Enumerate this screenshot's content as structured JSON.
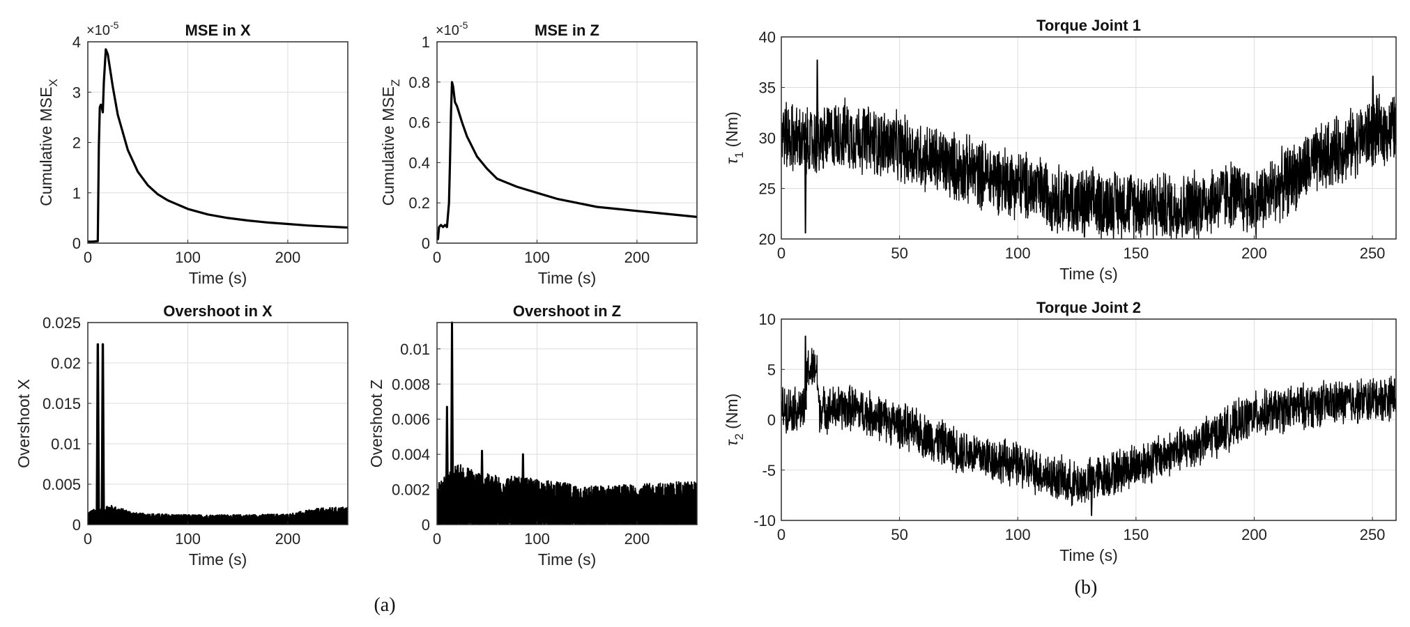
{
  "figure": {
    "panel_labels": [
      "(a)",
      "(b)"
    ]
  },
  "chart_data": [
    {
      "id": "mse-x",
      "type": "line",
      "title": "MSE in X",
      "xlabel": "Time (s)",
      "ylabel_main": "Cumulative MSE",
      "ylabel_sub": "X",
      "exponent_label": "×10",
      "exponent_power": "-5",
      "xlim": [
        0,
        260
      ],
      "ylim": [
        0,
        4
      ],
      "xticks": [
        0,
        100,
        200
      ],
      "yticks": [
        0,
        1,
        2,
        3,
        4
      ],
      "ytick_labels": [
        "0",
        "1",
        "2",
        "3",
        "4"
      ],
      "grid": true,
      "series": [
        {
          "name": "Cumulative MSE X (x1e-5)",
          "x": [
            0,
            5,
            10,
            11,
            12,
            13,
            14,
            15,
            16,
            18,
            20,
            25,
            30,
            40,
            50,
            60,
            70,
            80,
            100,
            120,
            140,
            160,
            180,
            200,
            220,
            240,
            260
          ],
          "y": [
            0.03,
            0.03,
            0.04,
            1.9,
            2.7,
            2.75,
            2.7,
            2.6,
            3.2,
            3.85,
            3.75,
            3.1,
            2.55,
            1.85,
            1.42,
            1.15,
            0.97,
            0.85,
            0.68,
            0.57,
            0.5,
            0.45,
            0.41,
            0.38,
            0.35,
            0.33,
            0.31
          ]
        }
      ]
    },
    {
      "id": "mse-z",
      "type": "line",
      "title": "MSE in Z",
      "xlabel": "Time (s)",
      "ylabel_main": "Cumulative MSE",
      "ylabel_sub": "Z",
      "exponent_label": "×10",
      "exponent_power": "-5",
      "xlim": [
        0,
        260
      ],
      "ylim": [
        0,
        1
      ],
      "xticks": [
        0,
        100,
        200
      ],
      "yticks": [
        0,
        0.2,
        0.4,
        0.6,
        0.8,
        1
      ],
      "ytick_labels": [
        "0",
        "0.2",
        "0.4",
        "0.6",
        "0.8",
        "1"
      ],
      "grid": true,
      "series": [
        {
          "name": "Cumulative MSE Z (x1e-5)",
          "x": [
            0,
            1,
            2,
            4,
            6,
            8,
            10,
            12,
            13,
            14,
            15,
            16,
            18,
            20,
            25,
            30,
            40,
            50,
            60,
            70,
            80,
            100,
            120,
            140,
            160,
            180,
            200,
            220,
            240,
            260
          ],
          "y": [
            0.05,
            0.02,
            0.08,
            0.09,
            0.08,
            0.09,
            0.08,
            0.2,
            0.4,
            0.65,
            0.8,
            0.78,
            0.7,
            0.68,
            0.6,
            0.53,
            0.43,
            0.37,
            0.32,
            0.3,
            0.28,
            0.25,
            0.22,
            0.2,
            0.18,
            0.17,
            0.16,
            0.15,
            0.14,
            0.13
          ]
        }
      ]
    },
    {
      "id": "overshoot-x",
      "type": "line",
      "title": "Overshoot in X",
      "xlabel": "Time (s)",
      "ylabel": "Overshoot X",
      "xlim": [
        0,
        260
      ],
      "ylim": [
        0,
        0.025
      ],
      "xticks": [
        0,
        100,
        200
      ],
      "yticks": [
        0,
        0.005,
        0.01,
        0.015,
        0.02,
        0.025
      ],
      "ytick_labels": [
        "0",
        "0.005",
        "0.01",
        "0.015",
        "0.02",
        "0.025"
      ],
      "grid": true,
      "series": [
        {
          "name": "Overshoot X",
          "description": "noisy signal; spikes at ~10 s and ~15 s reaching 0.0223, then envelope ~0.001-0.002",
          "spikes": [
            {
              "x": 10,
              "y": 0.0223
            },
            {
              "x": 15,
              "y": 0.0223
            }
          ],
          "envelope_x": [
            0,
            20,
            50,
            100,
            150,
            200,
            230,
            260
          ],
          "envelope_max": [
            0.0016,
            0.0025,
            0.0014,
            0.0012,
            0.0012,
            0.0013,
            0.002,
            0.0022
          ]
        }
      ]
    },
    {
      "id": "overshoot-z",
      "type": "line",
      "title": "Overshoot in Z",
      "xlabel": "Time (s)",
      "ylabel": "Overshoot Z",
      "xlim": [
        0,
        260
      ],
      "ylim": [
        0,
        0.0115
      ],
      "xticks": [
        0,
        100,
        200
      ],
      "yticks": [
        0,
        0.002,
        0.004,
        0.006,
        0.008,
        0.01
      ],
      "ytick_labels": [
        "0",
        "0.002",
        "0.004",
        "0.006",
        "0.008",
        "0.01"
      ],
      "grid": true,
      "series": [
        {
          "name": "Overshoot Z",
          "description": "noisy signal; spike ~0.0115 at ~15 s, ~0.0067 at ~10 s, later envelope ~0.002-0.004",
          "spikes": [
            {
              "x": 10,
              "y": 0.0067
            },
            {
              "x": 15,
              "y": 0.0115
            },
            {
              "x": 45,
              "y": 0.0042
            },
            {
              "x": 86,
              "y": 0.004
            }
          ],
          "envelope_x": [
            0,
            20,
            50,
            100,
            150,
            200,
            260
          ],
          "envelope_max": [
            0.0023,
            0.0035,
            0.0029,
            0.0026,
            0.0022,
            0.0023,
            0.0025
          ]
        }
      ]
    },
    {
      "id": "torque-joint-1",
      "type": "line",
      "title": "Torque Joint 1",
      "xlabel": "Time (s)",
      "ylabel_symbol": "τ",
      "ylabel_sub": "1",
      "ylabel_unit": " (Nm)",
      "xlim": [
        0,
        260
      ],
      "ylim": [
        20,
        40
      ],
      "xticks": [
        0,
        50,
        100,
        150,
        200,
        250
      ],
      "yticks": [
        20,
        25,
        30,
        35,
        40
      ],
      "ytick_labels": [
        "20",
        "25",
        "30",
        "35",
        "40"
      ],
      "grid": true,
      "series": [
        {
          "name": "tau_1",
          "description": "dense noisy torque; band center follows trend, band width ~±4 Nm",
          "trend_x": [
            0,
            10,
            15,
            25,
            50,
            75,
            100,
            125,
            150,
            170,
            190,
            200,
            225,
            250,
            260
          ],
          "trend_y": [
            30.5,
            29.5,
            29.5,
            30.5,
            29,
            27,
            25.5,
            23.5,
            23.5,
            23,
            24.5,
            23.5,
            27.5,
            30.5,
            31
          ],
          "half_band": 3.5,
          "extremes": [
            {
              "x": 15,
              "y": 37.7
            },
            {
              "x": 10,
              "y": 20.6
            },
            {
              "x": 128,
              "y": 20.2
            },
            {
              "x": 250,
              "y": 36.1
            }
          ]
        }
      ]
    },
    {
      "id": "torque-joint-2",
      "type": "line",
      "title": "Torque Joint 2",
      "xlabel": "Time (s)",
      "ylabel_symbol": "τ",
      "ylabel_sub": "2",
      "ylabel_unit": " (Nm)",
      "xlim": [
        0,
        260
      ],
      "ylim": [
        -10,
        10
      ],
      "xticks": [
        0,
        50,
        100,
        150,
        200,
        250
      ],
      "yticks": [
        -10,
        -5,
        0,
        5,
        10
      ],
      "ytick_labels": [
        "-10",
        "-5",
        "0",
        "5",
        "10"
      ],
      "grid": true,
      "series": [
        {
          "name": "tau_2",
          "description": "dense noisy torque; step up to ~5 Nm between 10-15 s, V-shaped trend with minimum near 125 s",
          "trend_x": [
            0,
            10,
            11,
            15,
            16,
            30,
            50,
            75,
            100,
            125,
            150,
            175,
            200,
            225,
            250,
            260
          ],
          "trend_y": [
            1.2,
            1.0,
            5.0,
            5.0,
            1.0,
            1.2,
            -0.5,
            -3,
            -4.5,
            -6.5,
            -4.5,
            -2.5,
            0.5,
            1.5,
            2,
            2.3
          ],
          "half_band": 2.3,
          "extremes": [
            {
              "x": 10,
              "y": 8.3
            },
            {
              "x": 131,
              "y": -9.5
            }
          ]
        }
      ]
    }
  ]
}
